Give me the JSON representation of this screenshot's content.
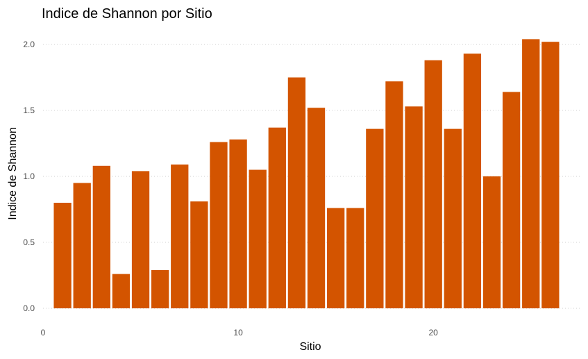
{
  "chart_data": {
    "type": "bar",
    "title": "Indice de Shannon por Sitio",
    "xlabel": "Sitio",
    "ylabel": "Indice de Shannon",
    "x": [
      1,
      2,
      3,
      4,
      5,
      6,
      7,
      8,
      9,
      10,
      11,
      12,
      13,
      14,
      15,
      16,
      17,
      18,
      19,
      20,
      21,
      22,
      23,
      24,
      25,
      26
    ],
    "values": [
      0.8,
      0.95,
      1.08,
      0.26,
      1.04,
      0.29,
      1.09,
      0.81,
      1.26,
      1.28,
      1.05,
      1.37,
      1.75,
      1.52,
      0.76,
      0.76,
      1.36,
      1.72,
      1.53,
      1.88,
      1.36,
      1.93,
      1.0,
      1.64,
      2.04,
      2.02
    ],
    "xlim": [
      0,
      27.5
    ],
    "ylim": [
      0,
      2.1
    ],
    "xticks": [
      0,
      10,
      20
    ],
    "xtick_labels": [
      "0",
      "10",
      "20"
    ],
    "yticks": [
      0,
      0.5,
      1.0,
      1.5,
      2.0
    ],
    "ytick_labels": [
      "0.0",
      "0.5",
      "1.0",
      "1.5",
      "2.0"
    ],
    "bar_color": "#d35400",
    "grid": "horizontal-dotted",
    "legend": "none"
  }
}
